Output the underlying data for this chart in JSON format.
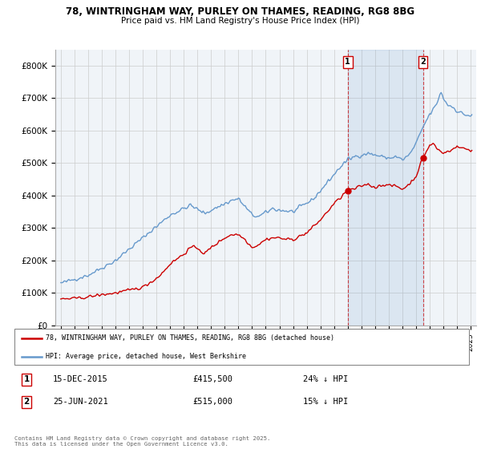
{
  "title_line1": "78, WINTRINGHAM WAY, PURLEY ON THAMES, READING, RG8 8BG",
  "title_line2": "Price paid vs. HM Land Registry's House Price Index (HPI)",
  "legend_label_red": "78, WINTRINGHAM WAY, PURLEY ON THAMES, READING, RG8 8BG (detached house)",
  "legend_label_blue": "HPI: Average price, detached house, West Berkshire",
  "annotation1_date": "15-DEC-2015",
  "annotation1_price": "£415,500",
  "annotation1_hpi": "24% ↓ HPI",
  "annotation2_date": "25-JUN-2021",
  "annotation2_price": "£515,000",
  "annotation2_hpi": "15% ↓ HPI",
  "footer": "Contains HM Land Registry data © Crown copyright and database right 2025.\nThis data is licensed under the Open Government Licence v3.0.",
  "red_color": "#cc0000",
  "blue_color": "#6699cc",
  "shade_color": "#ddeeff",
  "bg_color": "#ffffff",
  "grid_color": "#cccccc",
  "ylim_max": 850000,
  "sale1_year": 2016.0,
  "sale1_price": 415500,
  "sale2_year": 2021.5,
  "sale2_price": 515000,
  "xtick_start": 1995,
  "xtick_end": 2025
}
